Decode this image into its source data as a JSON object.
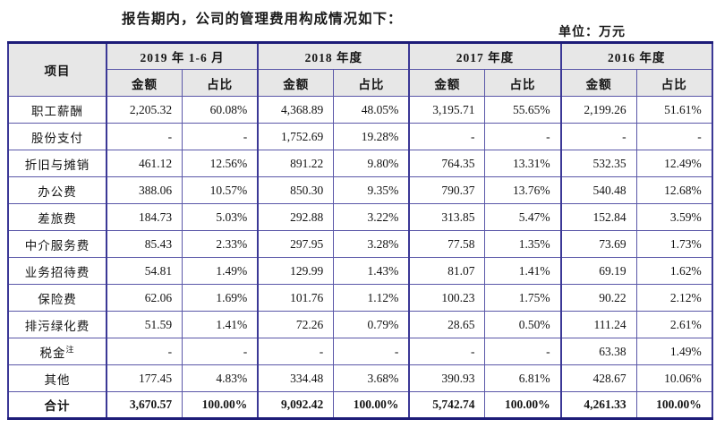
{
  "page": {
    "intro": "报告期内，公司的管理费用构成情况如下：",
    "unit_label": "单位：万元"
  },
  "table": {
    "item_header": "项目",
    "periods": [
      "2019 年 1-6 月",
      "2018 年度",
      "2017 年度",
      "2016 年度"
    ],
    "sub_headers": [
      "金额",
      "占比"
    ],
    "rows": [
      {
        "item": "职工薪酬",
        "values": [
          "2,205.32",
          "60.08%",
          "4,368.89",
          "48.05%",
          "3,195.71",
          "55.65%",
          "2,199.26",
          "51.61%"
        ]
      },
      {
        "item": "股份支付",
        "values": [
          "-",
          "-",
          "1,752.69",
          "19.28%",
          "-",
          "-",
          "-",
          "-"
        ]
      },
      {
        "item": "折旧与摊销",
        "values": [
          "461.12",
          "12.56%",
          "891.22",
          "9.80%",
          "764.35",
          "13.31%",
          "532.35",
          "12.49%"
        ]
      },
      {
        "item": "办公费",
        "values": [
          "388.06",
          "10.57%",
          "850.30",
          "9.35%",
          "790.37",
          "13.76%",
          "540.48",
          "12.68%"
        ]
      },
      {
        "item": "差旅费",
        "values": [
          "184.73",
          "5.03%",
          "292.88",
          "3.22%",
          "313.85",
          "5.47%",
          "152.84",
          "3.59%"
        ]
      },
      {
        "item": "中介服务费",
        "values": [
          "85.43",
          "2.33%",
          "297.95",
          "3.28%",
          "77.58",
          "1.35%",
          "73.69",
          "1.73%"
        ]
      },
      {
        "item": "业务招待费",
        "values": [
          "54.81",
          "1.49%",
          "129.99",
          "1.43%",
          "81.07",
          "1.41%",
          "69.19",
          "1.62%"
        ]
      },
      {
        "item": "保险费",
        "values": [
          "62.06",
          "1.69%",
          "101.76",
          "1.12%",
          "100.23",
          "1.75%",
          "90.22",
          "2.12%"
        ]
      },
      {
        "item": "排污绿化费",
        "values": [
          "51.59",
          "1.41%",
          "72.26",
          "0.79%",
          "28.65",
          "0.50%",
          "111.24",
          "2.61%"
        ]
      },
      {
        "item": "税金",
        "item_superscript": "注",
        "values": [
          "-",
          "-",
          "-",
          "-",
          "-",
          "-",
          "63.38",
          "1.49%"
        ]
      },
      {
        "item": "其他",
        "values": [
          "177.45",
          "4.83%",
          "334.48",
          "3.68%",
          "390.93",
          "6.81%",
          "428.67",
          "10.06%"
        ]
      }
    ],
    "total_row": {
      "item": "合计",
      "values": [
        "3,670.57",
        "100.00%",
        "9,092.42",
        "100.00%",
        "5,742.74",
        "100.00%",
        "4,261.33",
        "100.00%"
      ]
    }
  },
  "colors": {
    "grid_border": "#5a57a8",
    "group_border": "#3b3896",
    "outer_border": "#1d1c78",
    "header_bg": "#e7e7e7",
    "text": "#141414"
  }
}
